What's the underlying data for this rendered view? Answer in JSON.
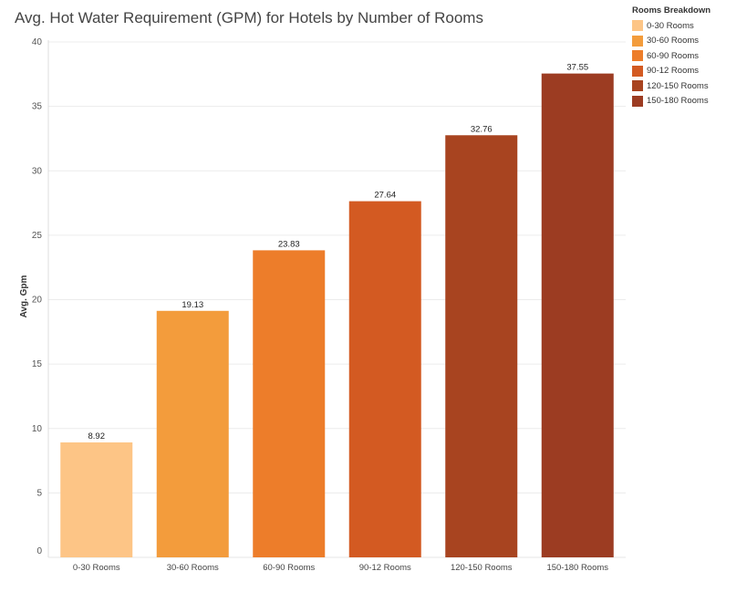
{
  "chart_data": {
    "type": "bar",
    "title": "Avg. Hot Water Requirement (GPM) for Hotels by Number of Rooms",
    "xlabel": "",
    "ylabel": "Avg. Gpm",
    "ylim": [
      0,
      40
    ],
    "yticks": [
      0,
      5,
      10,
      15,
      20,
      25,
      30,
      35,
      40
    ],
    "grid": true,
    "categories": [
      "0-30 Rooms",
      "30-60 Rooms",
      "60-90 Rooms",
      "90-12 Rooms",
      "120-150 Rooms",
      "150-180 Rooms"
    ],
    "values": [
      8.92,
      19.13,
      23.83,
      27.64,
      32.76,
      37.55
    ],
    "data_labels": [
      "8.92",
      "19.13",
      "23.83",
      "27.64",
      "32.76",
      "37.55"
    ],
    "colors": [
      "#fdc586",
      "#f39c3c",
      "#ed7d2a",
      "#d35a22",
      "#a84420",
      "#9c3c22"
    ],
    "legend": {
      "title": "Rooms Breakdown",
      "placement": "top-right",
      "items": [
        "0-30 Rooms",
        "30-60 Rooms",
        "60-90 Rooms",
        "90-12 Rooms",
        "120-150 Rooms",
        "150-180 Rooms"
      ]
    }
  }
}
